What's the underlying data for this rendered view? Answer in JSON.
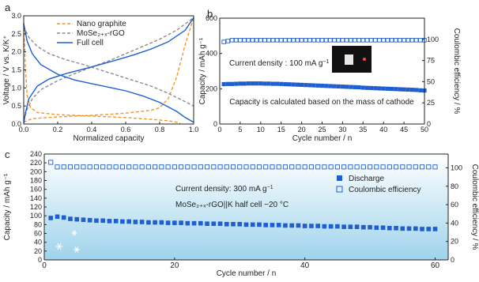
{
  "colors": {
    "axis": "#222222",
    "orange": "#f0962e",
    "gray": "#8c8c8c",
    "blue": "#1f5ed0",
    "fill_top": "#ffffff",
    "fill_bottom": "#9fd3ec",
    "snow": "#ffffff"
  },
  "chart_data": [
    {
      "panel": "a",
      "type": "line",
      "xlabel": "Normalized capacity",
      "ylabel": "Voltage / V vs. K/K⁺",
      "xlim": [
        0,
        1
      ],
      "ylim": [
        0,
        3
      ],
      "x_ticks": [
        0.0,
        0.2,
        0.4,
        0.6,
        0.8,
        1.0
      ],
      "x_tick_labels": [
        "0.0",
        "0.2",
        "0.4",
        "0.6",
        "0.8",
        "1.0"
      ],
      "y_ticks": [
        0,
        0.5,
        1,
        1.5,
        2,
        2.5,
        3
      ],
      "y_tick_labels": [
        "0.0",
        "0.5",
        "1.0",
        "1.5",
        "2.0",
        "2.5",
        "3.0"
      ],
      "legend_position": "top-center",
      "series": [
        {
          "name": "Nano graphite",
          "style": "dashed",
          "color": "orange",
          "legend": true,
          "points": [
            [
              0,
              2.8
            ],
            [
              0.01,
              1.6
            ],
            [
              0.02,
              0.8
            ],
            [
              0.04,
              0.45
            ],
            [
              0.08,
              0.32
            ],
            [
              0.2,
              0.26
            ],
            [
              0.4,
              0.22
            ],
            [
              0.6,
              0.18
            ],
            [
              0.75,
              0.13
            ],
            [
              0.85,
              0.09
            ],
            [
              0.9,
              0.05
            ],
            [
              0.92,
              0.02
            ]
          ]
        },
        {
          "name": "",
          "style": "dashed",
          "color": "orange",
          "legend": false,
          "points": [
            [
              0,
              0.05
            ],
            [
              0.05,
              0.15
            ],
            [
              0.2,
              0.2
            ],
            [
              0.4,
              0.24
            ],
            [
              0.6,
              0.3
            ],
            [
              0.75,
              0.38
            ],
            [
              0.8,
              0.45
            ],
            [
              0.85,
              0.7
            ],
            [
              0.9,
              1.3
            ],
            [
              0.95,
              2.2
            ],
            [
              1.0,
              2.95
            ]
          ]
        },
        {
          "name": "MoSe₂₊ₓ-rGO",
          "style": "dashed",
          "color": "gray",
          "legend": true,
          "points": [
            [
              0,
              0.1
            ],
            [
              0.02,
              0.4
            ],
            [
              0.05,
              0.7
            ],
            [
              0.1,
              0.95
            ],
            [
              0.2,
              1.2
            ],
            [
              0.3,
              1.4
            ],
            [
              0.4,
              1.58
            ],
            [
              0.5,
              1.75
            ],
            [
              0.6,
              1.95
            ],
            [
              0.7,
              2.15
            ],
            [
              0.8,
              2.35
            ],
            [
              0.9,
              2.6
            ],
            [
              1.0,
              2.95
            ]
          ]
        },
        {
          "name": "",
          "style": "dashed",
          "color": "gray",
          "legend": false,
          "points": [
            [
              0,
              2.7
            ],
            [
              0.03,
              2.4
            ],
            [
              0.08,
              2.15
            ],
            [
              0.15,
              1.95
            ],
            [
              0.25,
              1.78
            ],
            [
              0.35,
              1.65
            ],
            [
              0.45,
              1.5
            ],
            [
              0.55,
              1.35
            ],
            [
              0.65,
              1.2
            ],
            [
              0.75,
              1.05
            ],
            [
              0.85,
              0.85
            ],
            [
              0.95,
              0.62
            ],
            [
              1.0,
              0.5
            ]
          ]
        },
        {
          "name": "Full cell",
          "style": "solid",
          "color": "blue",
          "legend": true,
          "points": [
            [
              0,
              0.02
            ],
            [
              0.01,
              0.3
            ],
            [
              0.03,
              0.7
            ],
            [
              0.08,
              1.05
            ],
            [
              0.15,
              1.25
            ],
            [
              0.25,
              1.4
            ],
            [
              0.35,
              1.52
            ],
            [
              0.45,
              1.65
            ],
            [
              0.55,
              1.78
            ],
            [
              0.65,
              1.92
            ],
            [
              0.75,
              2.08
            ],
            [
              0.85,
              2.28
            ],
            [
              0.95,
              2.6
            ],
            [
              1.0,
              2.95
            ]
          ]
        },
        {
          "name": "",
          "style": "solid",
          "color": "blue",
          "legend": false,
          "points": [
            [
              0,
              2.78
            ],
            [
              0.02,
              2.3
            ],
            [
              0.05,
              1.95
            ],
            [
              0.1,
              1.65
            ],
            [
              0.2,
              1.38
            ],
            [
              0.3,
              1.22
            ],
            [
              0.4,
              1.12
            ],
            [
              0.5,
              1.02
            ],
            [
              0.6,
              0.92
            ],
            [
              0.7,
              0.78
            ],
            [
              0.8,
              0.6
            ],
            [
              0.9,
              0.35
            ],
            [
              0.95,
              0.18
            ],
            [
              1.0,
              0.05
            ]
          ]
        }
      ]
    },
    {
      "panel": "b",
      "type": "scatter",
      "xlabel": "Cycle number / n",
      "ylabel": "Capacity / mAh g⁻¹",
      "ylabel_right": "Coulombic efficiency / %",
      "xlim": [
        0,
        50
      ],
      "ylim": [
        0,
        600
      ],
      "ylim_right": [
        0,
        125
      ],
      "x_ticks": [
        0,
        5,
        10,
        15,
        20,
        25,
        30,
        35,
        40,
        45,
        50
      ],
      "x_tick_labels": [
        "0",
        "5",
        "10",
        "15",
        "20",
        "25",
        "30",
        "35",
        "40",
        "45",
        "50"
      ],
      "y_ticks": [
        0,
        200,
        400,
        600
      ],
      "y_tick_labels": [
        "0",
        "200",
        "400",
        "600"
      ],
      "y_right_ticks": [
        0,
        25,
        50,
        75,
        100
      ],
      "y_right_tick_labels": [
        "0",
        "25",
        "50",
        "75",
        "100"
      ],
      "annotations": [
        {
          "text": "Current density : 100 mA g",
          "sup": "−1"
        },
        {
          "text": "Capacity is calculated based on the mass of cathode",
          "sup": ""
        }
      ],
      "capacity": {
        "x": [
          1,
          2,
          3,
          4,
          5,
          6,
          7,
          8,
          9,
          10,
          11,
          12,
          13,
          14,
          15,
          16,
          17,
          18,
          19,
          20,
          21,
          22,
          23,
          24,
          25,
          26,
          27,
          28,
          29,
          30,
          31,
          32,
          33,
          34,
          35,
          36,
          37,
          38,
          39,
          40,
          41,
          42,
          43,
          44,
          45,
          46,
          47,
          48,
          49,
          50
        ],
        "values": [
          226,
          227,
          227,
          228,
          229,
          229,
          230,
          230,
          230,
          230,
          229,
          229,
          228,
          228,
          227,
          226,
          225,
          224,
          223,
          222,
          221,
          220,
          219,
          218,
          217,
          216,
          215,
          214,
          213,
          212,
          211,
          210,
          209,
          208,
          206,
          205,
          204,
          203,
          202,
          201,
          200,
          199,
          198,
          197,
          196,
          195,
          194,
          193,
          191,
          190
        ]
      },
      "efficiency": {
        "x": [
          1,
          2,
          3,
          4,
          5,
          6,
          7,
          8,
          9,
          10,
          11,
          12,
          13,
          14,
          15,
          16,
          17,
          18,
          19,
          20,
          21,
          22,
          23,
          24,
          25,
          26,
          27,
          28,
          29,
          30,
          31,
          32,
          33,
          34,
          35,
          36,
          37,
          38,
          39,
          40,
          41,
          42,
          43,
          44,
          45,
          46,
          47,
          48,
          49,
          50
        ],
        "values": [
          97,
          98,
          99,
          99,
          99,
          99,
          99,
          99,
          99,
          99,
          99,
          99,
          99,
          99,
          99,
          99,
          99,
          99,
          99,
          99,
          99,
          99,
          99,
          99,
          99,
          99,
          99,
          99,
          99,
          99,
          99,
          99,
          99,
          99,
          99,
          99,
          99,
          99,
          99,
          99,
          99,
          99,
          99,
          99,
          99,
          99,
          99,
          99,
          99,
          99
        ]
      }
    },
    {
      "panel": "c",
      "type": "scatter",
      "xlabel": "Cycle number / n",
      "ylabel": "Capacity / mAh g⁻¹",
      "ylabel_right": "Coulombic efficiency / %",
      "xlim": [
        0,
        62
      ],
      "ylim": [
        0,
        240
      ],
      "ylim_right": [
        0,
        115
      ],
      "x_ticks": [
        0,
        20,
        40,
        60
      ],
      "x_tick_labels": [
        "0",
        "20",
        "40",
        "60"
      ],
      "y_ticks": [
        0,
        20,
        40,
        60,
        80,
        100,
        120,
        140,
        160,
        180,
        200,
        220,
        240
      ],
      "y_tick_labels": [
        "0",
        "20",
        "40",
        "60",
        "80",
        "100",
        "120",
        "140",
        "160",
        "180",
        "200",
        "220",
        "240"
      ],
      "y_right_ticks": [
        0,
        20,
        40,
        60,
        80,
        100
      ],
      "y_right_tick_labels": [
        "0",
        "20",
        "40",
        "60",
        "80",
        "100"
      ],
      "legend_position": "top-right",
      "legend": [
        "Discharge",
        "Coulombic efficiency"
      ],
      "annotations": [
        {
          "text": "Current density: 300 mA g",
          "sup": "−1"
        },
        {
          "text": "MoSe₂₊ₓ-rGO||K  half cell  −20 °C",
          "sup": ""
        }
      ],
      "discharge": {
        "x": [
          1,
          2,
          3,
          4,
          5,
          6,
          7,
          8,
          9,
          10,
          11,
          12,
          13,
          14,
          15,
          16,
          17,
          18,
          19,
          20,
          21,
          22,
          23,
          24,
          25,
          26,
          27,
          28,
          29,
          30,
          31,
          32,
          33,
          34,
          35,
          36,
          37,
          38,
          39,
          40,
          41,
          42,
          43,
          44,
          45,
          46,
          47,
          48,
          49,
          50,
          51,
          52,
          53,
          54,
          55,
          56,
          57,
          58,
          59,
          60
        ],
        "values": [
          95,
          98,
          96,
          93,
          92,
          91,
          90,
          89,
          89,
          88,
          88,
          87,
          87,
          86,
          86,
          85,
          85,
          85,
          84,
          84,
          84,
          83,
          83,
          83,
          82,
          82,
          82,
          81,
          81,
          81,
          80,
          80,
          80,
          79,
          79,
          79,
          78,
          78,
          78,
          77,
          77,
          77,
          76,
          76,
          76,
          75,
          75,
          75,
          74,
          74,
          73,
          73,
          72,
          72,
          71,
          71,
          71,
          70,
          70,
          70
        ]
      },
      "efficiency": {
        "x": [
          1,
          2,
          3,
          4,
          5,
          6,
          7,
          8,
          9,
          10,
          11,
          12,
          13,
          14,
          15,
          16,
          17,
          18,
          19,
          20,
          21,
          22,
          23,
          24,
          25,
          26,
          27,
          28,
          29,
          30,
          31,
          32,
          33,
          34,
          35,
          36,
          37,
          38,
          39,
          40,
          41,
          42,
          43,
          44,
          45,
          46,
          47,
          48,
          49,
          50,
          51,
          52,
          53,
          54,
          55,
          56,
          57,
          58,
          59,
          60
        ],
        "values": [
          106,
          101,
          101,
          101,
          101,
          101,
          101,
          101,
          101,
          101,
          101,
          101,
          101,
          101,
          101,
          101,
          101,
          101,
          101,
          101,
          101,
          101,
          101,
          101,
          101,
          101,
          101,
          101,
          101,
          101,
          101,
          101,
          101,
          101,
          101,
          101,
          101,
          101,
          101,
          101,
          101,
          101,
          101,
          101,
          101,
          101,
          101,
          101,
          101,
          101,
          101,
          101,
          101,
          101,
          101,
          101,
          101,
          101,
          101,
          101
        ]
      }
    }
  ]
}
